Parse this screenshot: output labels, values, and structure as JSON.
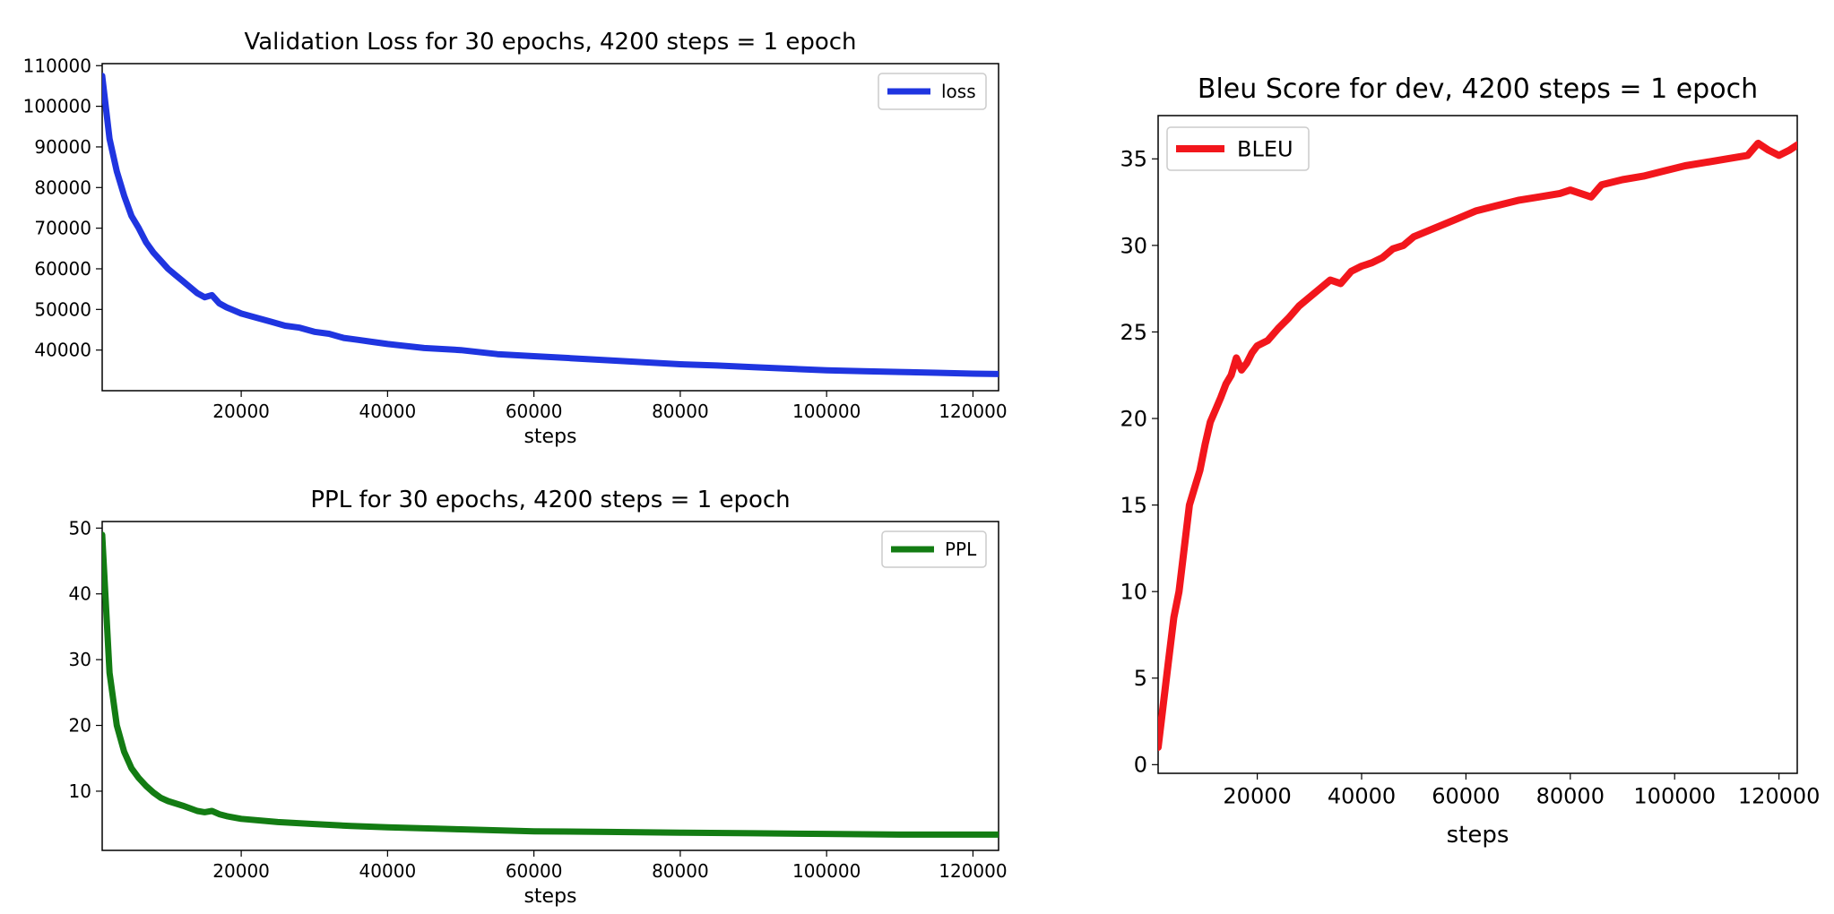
{
  "chart_data": [
    {
      "type": "line",
      "title": "Validation Loss for 30 epochs, 4200 steps = 1 epoch",
      "xlabel": "steps",
      "ylabel": "",
      "xlim": [
        1000,
        123500
      ],
      "ylim": [
        30000,
        110500
      ],
      "xticks": [
        20000,
        40000,
        60000,
        80000,
        100000,
        120000
      ],
      "yticks": [
        40000,
        50000,
        60000,
        70000,
        80000,
        90000,
        100000,
        110000
      ],
      "legend_position": "top-right",
      "series": [
        {
          "name": "loss",
          "color": "#1f35e0",
          "x": [
            1000,
            2000,
            3000,
            4000,
            5000,
            6000,
            7000,
            8000,
            9000,
            10000,
            11000,
            12000,
            13000,
            14000,
            15000,
            16000,
            17000,
            18000,
            20000,
            22000,
            24000,
            26000,
            28000,
            30000,
            32000,
            34000,
            36000,
            38000,
            40000,
            45000,
            50000,
            55000,
            60000,
            65000,
            70000,
            75000,
            80000,
            85000,
            90000,
            95000,
            100000,
            105000,
            110000,
            115000,
            120000,
            123500
          ],
          "y": [
            107500,
            92000,
            84000,
            78000,
            73000,
            70000,
            66500,
            64000,
            62000,
            60000,
            58500,
            57000,
            55500,
            54000,
            53000,
            53500,
            51500,
            50500,
            49000,
            48000,
            47000,
            46000,
            45500,
            44500,
            44000,
            43000,
            42500,
            42000,
            41500,
            40500,
            40000,
            39000,
            38500,
            38000,
            37500,
            37000,
            36500,
            36200,
            35800,
            35400,
            35000,
            34800,
            34600,
            34400,
            34200,
            34100
          ]
        }
      ]
    },
    {
      "type": "line",
      "title": "PPL for 30 epochs, 4200 steps = 1 epoch",
      "xlabel": "steps",
      "ylabel": "",
      "xlim": [
        1000,
        123500
      ],
      "ylim": [
        1,
        51
      ],
      "xticks": [
        20000,
        40000,
        60000,
        80000,
        100000,
        120000
      ],
      "yticks": [
        10,
        20,
        30,
        40,
        50
      ],
      "legend_position": "top-right",
      "series": [
        {
          "name": "PPL",
          "color": "#137c13",
          "x": [
            1000,
            2000,
            3000,
            4000,
            5000,
            6000,
            7000,
            8000,
            9000,
            10000,
            12000,
            14000,
            15000,
            16000,
            17000,
            18000,
            20000,
            25000,
            30000,
            35000,
            40000,
            50000,
            60000,
            70000,
            80000,
            90000,
            100000,
            110000,
            123500
          ],
          "y": [
            49,
            28,
            20,
            16,
            13.5,
            12,
            10.8,
            9.8,
            9.0,
            8.5,
            7.8,
            7.0,
            6.8,
            7.0,
            6.5,
            6.2,
            5.8,
            5.3,
            5.0,
            4.7,
            4.5,
            4.2,
            3.9,
            3.8,
            3.7,
            3.6,
            3.5,
            3.4,
            3.4
          ]
        }
      ]
    },
    {
      "type": "line",
      "title": "Bleu Score for dev, 4200 steps = 1 epoch",
      "xlabel": "steps",
      "ylabel": "",
      "xlim": [
        1000,
        123500
      ],
      "ylim": [
        -0.5,
        37.5
      ],
      "xticks": [
        20000,
        40000,
        60000,
        80000,
        100000,
        120000
      ],
      "yticks": [
        0,
        5,
        10,
        15,
        20,
        25,
        30,
        35
      ],
      "legend_position": "top-left",
      "series": [
        {
          "name": "BLEU",
          "color": "#f2161c",
          "x": [
            1000,
            2000,
            3000,
            4000,
            5000,
            6000,
            7000,
            8000,
            9000,
            10000,
            11000,
            12000,
            13000,
            14000,
            15000,
            16000,
            17000,
            18000,
            19000,
            20000,
            22000,
            24000,
            26000,
            28000,
            30000,
            32000,
            34000,
            36000,
            38000,
            40000,
            42000,
            44000,
            46000,
            48000,
            50000,
            54000,
            58000,
            62000,
            66000,
            70000,
            74000,
            78000,
            80000,
            84000,
            86000,
            90000,
            94000,
            98000,
            102000,
            106000,
            110000,
            114000,
            116000,
            118000,
            120000,
            122000,
            123500
          ],
          "y": [
            1,
            3.5,
            6,
            8.5,
            10,
            12.5,
            15,
            16,
            17,
            18.5,
            19.8,
            20.5,
            21.2,
            22,
            22.5,
            23.5,
            22.8,
            23.2,
            23.8,
            24.2,
            24.5,
            25.2,
            25.8,
            26.5,
            27,
            27.5,
            28,
            27.8,
            28.5,
            28.8,
            29,
            29.3,
            29.8,
            30,
            30.5,
            31,
            31.5,
            32,
            32.3,
            32.6,
            32.8,
            33,
            33.2,
            32.8,
            33.5,
            33.8,
            34,
            34.3,
            34.6,
            34.8,
            35,
            35.2,
            35.9,
            35.5,
            35.2,
            35.5,
            35.8
          ]
        }
      ]
    }
  ]
}
